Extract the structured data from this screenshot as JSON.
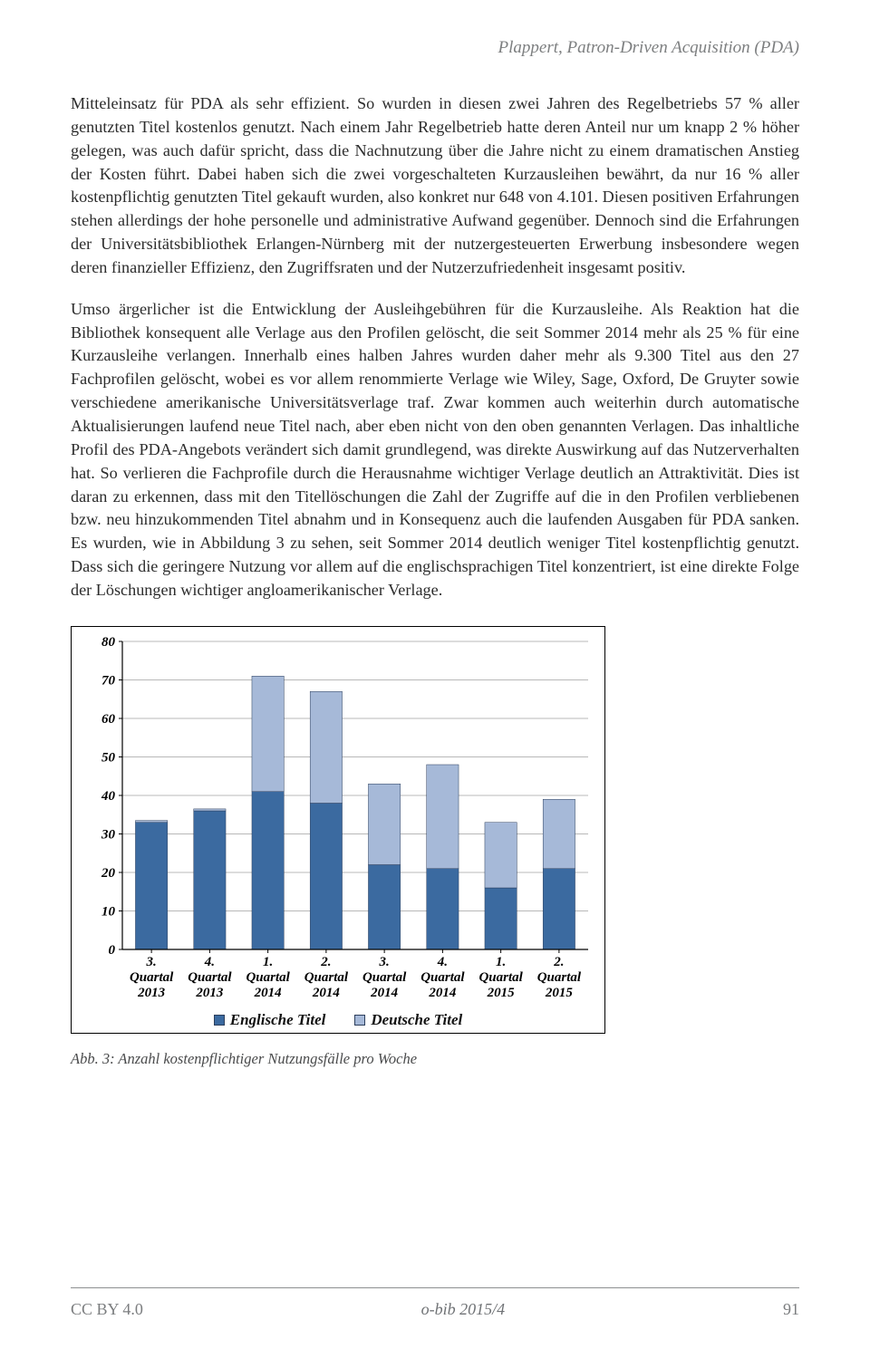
{
  "header": {
    "running": "Plappert, Patron-Driven Acquisition (PDA)"
  },
  "paragraphs": {
    "p1": "Mitteleinsatz für PDA als sehr effizient. So wurden in diesen zwei Jahren des Regelbetriebs 57 % aller genutzten Titel kostenlos genutzt. Nach einem Jahr Regelbetrieb hatte deren Anteil nur um knapp 2 % höher gelegen, was auch dafür spricht, dass die Nachnutzung über die Jahre nicht zu einem dramatischen Anstieg der Kosten führt. Dabei haben sich die zwei vorgeschalteten Kurzausleihen bewährt, da nur 16 % aller kostenpflichtig genutzten Titel gekauft wurden, also konkret nur 648 von 4.101. Diesen positiven Erfahrungen stehen allerdings der hohe personelle und administrative Aufwand gegenüber. Dennoch sind die Erfahrungen der Universitätsbibliothek Erlangen-Nürnberg mit der nutzergesteuerten Erwerbung insbesondere wegen deren finanzieller Effizienz, den Zugriffsraten und der Nutzerzufriedenheit insgesamt positiv.",
    "p2": "Umso ärgerlicher ist die Entwicklung der Ausleihgebühren für die Kurzausleihe. Als Reaktion hat die Bibliothek konsequent alle Verlage aus den Profilen gelöscht, die seit Sommer 2014 mehr als 25 % für eine Kurzausleihe verlangen. Innerhalb eines halben Jahres wurden daher mehr als 9.300 Titel aus den 27 Fachprofilen gelöscht, wobei es vor allem renommierte Verlage wie Wiley, Sage, Oxford, De Gruyter sowie verschiedene amerikanische Universitätsverlage traf. Zwar kommen auch weiterhin durch automatische Aktualisierungen laufend neue Titel nach, aber eben nicht von den oben genannten Verlagen. Das inhaltliche Profil des PDA-Angebots verändert sich damit grundlegend, was direkte Auswirkung auf das Nutzerverhalten hat. So verlieren die Fachprofile durch die Herausnahme wichtiger Verlage deutlich an Attraktivität. Dies ist daran zu erkennen, dass mit den Titellöschungen die Zahl der Zugriffe auf die in den Profilen verbliebenen bzw. neu hinzukommenden Titel abnahm und in Konsequenz auch die laufenden Ausgaben für PDA sanken. Es wurden, wie in Abbildung 3 zu sehen, seit Sommer 2014 deutlich weniger Titel kostenpflichtig genutzt. Dass sich die geringere Nutzung vor allem auf die englischsprachigen Titel konzentriert, ist eine direkte Folge der Löschungen wichtiger angloamerikanischer Verlage."
  },
  "chart": {
    "type": "stacked-bar",
    "categories": [
      {
        "l1": "3.",
        "l2": "Quartal",
        "l3": "2013"
      },
      {
        "l1": "4.",
        "l2": "Quartal",
        "l3": "2013"
      },
      {
        "l1": "1.",
        "l2": "Quartal",
        "l3": "2014"
      },
      {
        "l1": "2.",
        "l2": "Quartal",
        "l3": "2014"
      },
      {
        "l1": "3.",
        "l2": "Quartal",
        "l3": "2014"
      },
      {
        "l1": "4.",
        "l2": "Quartal",
        "l3": "2014"
      },
      {
        "l1": "1.",
        "l2": "Quartal",
        "l3": "2015"
      },
      {
        "l1": "2.",
        "l2": "Quartal",
        "l3": "2015"
      }
    ],
    "series": [
      {
        "name": "Englische Titel",
        "color": "#3b6aa0",
        "values": [
          33,
          36,
          41,
          38,
          22,
          21,
          16,
          21
        ]
      },
      {
        "name": "Deutsche Titel",
        "color": "#a6b9d8",
        "values": [
          0.5,
          0.5,
          30,
          29,
          21,
          27,
          17,
          18
        ]
      }
    ],
    "ylim": [
      0,
      80
    ],
    "ytick_step": 10,
    "bar_width": 0.55,
    "axis_color": "#000000",
    "grid_color": "#b8b8b8",
    "tick_font_size": 15,
    "tick_font_family": "Times New Roman",
    "tick_font_weight": "bold",
    "tick_font_style": "italic",
    "background": "#ffffff",
    "border_color": "#000000"
  },
  "caption": "Abb. 3: Anzahl kostenpflichtiger Nutzungsfälle pro Woche",
  "footer": {
    "license": "CC BY 4.0",
    "journal": "o-bib  2015/4",
    "page": "91"
  }
}
